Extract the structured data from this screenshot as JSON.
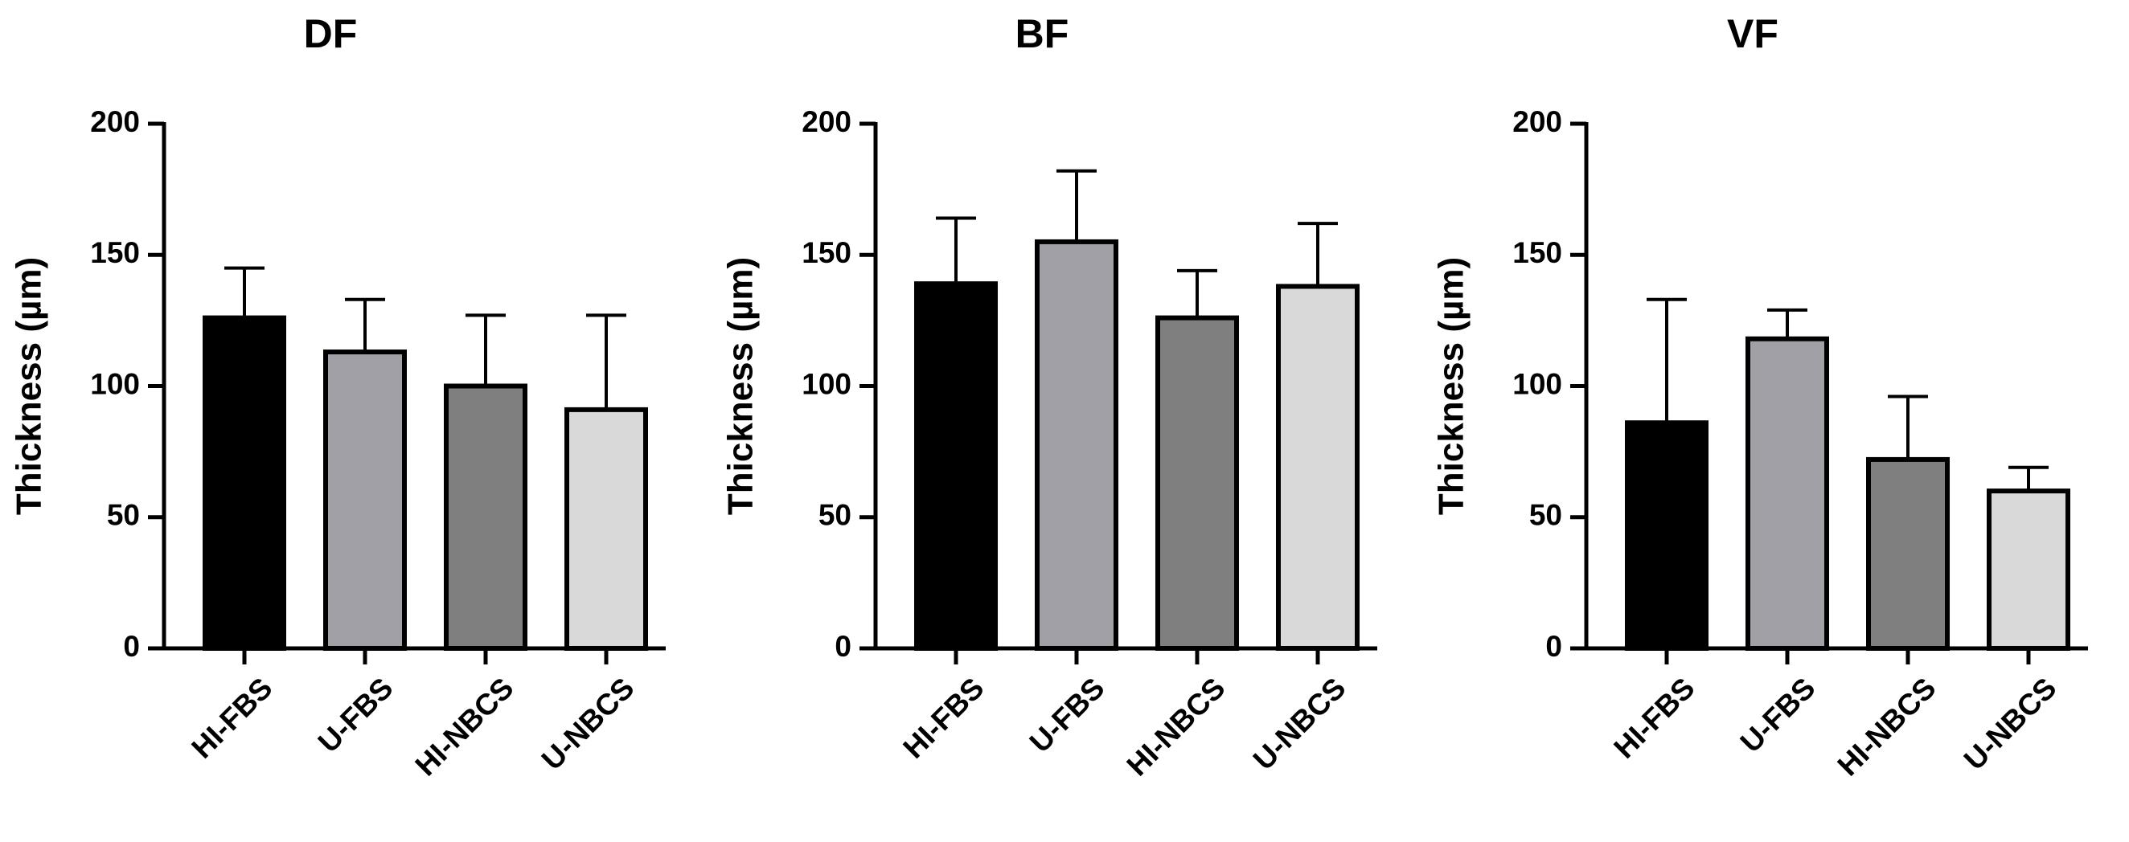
{
  "chart_data": [
    {
      "type": "bar",
      "title": "DF",
      "ylabel": "Thickness (µm)",
      "categories": [
        "HI-FBS",
        "U-FBS",
        "HI-NBCS",
        "U-NBCS"
      ],
      "values": [
        126,
        113,
        100,
        91
      ],
      "errors": [
        19,
        20,
        27,
        36
      ],
      "colors": [
        "#000000",
        "#a1a0a6",
        "#7f7f7f",
        "#d9d9d9"
      ],
      "ylim": [
        0,
        200
      ],
      "yticks": [
        0,
        50,
        100,
        150,
        200
      ]
    },
    {
      "type": "bar",
      "title": "BF",
      "ylabel": "Thickness (µm)",
      "categories": [
        "HI-FBS",
        "U-FBS",
        "HI-NBCS",
        "U-NBCS"
      ],
      "values": [
        139,
        155,
        126,
        138
      ],
      "errors": [
        25,
        27,
        18,
        24
      ],
      "colors": [
        "#000000",
        "#a1a0a6",
        "#7f7f7f",
        "#d9d9d9"
      ],
      "ylim": [
        0,
        200
      ],
      "yticks": [
        0,
        50,
        100,
        150,
        200
      ]
    },
    {
      "type": "bar",
      "title": "VF",
      "ylabel": "Thickness (µm)",
      "categories": [
        "HI-FBS",
        "U-FBS",
        "HI-NBCS",
        "U-NBCS"
      ],
      "values": [
        86,
        118,
        72,
        60
      ],
      "errors": [
        47,
        11,
        24,
        9
      ],
      "colors": [
        "#000000",
        "#a1a0a6",
        "#7f7f7f",
        "#d9d9d9"
      ],
      "ylim": [
        0,
        200
      ],
      "yticks": [
        0,
        50,
        100,
        150,
        200
      ]
    }
  ]
}
